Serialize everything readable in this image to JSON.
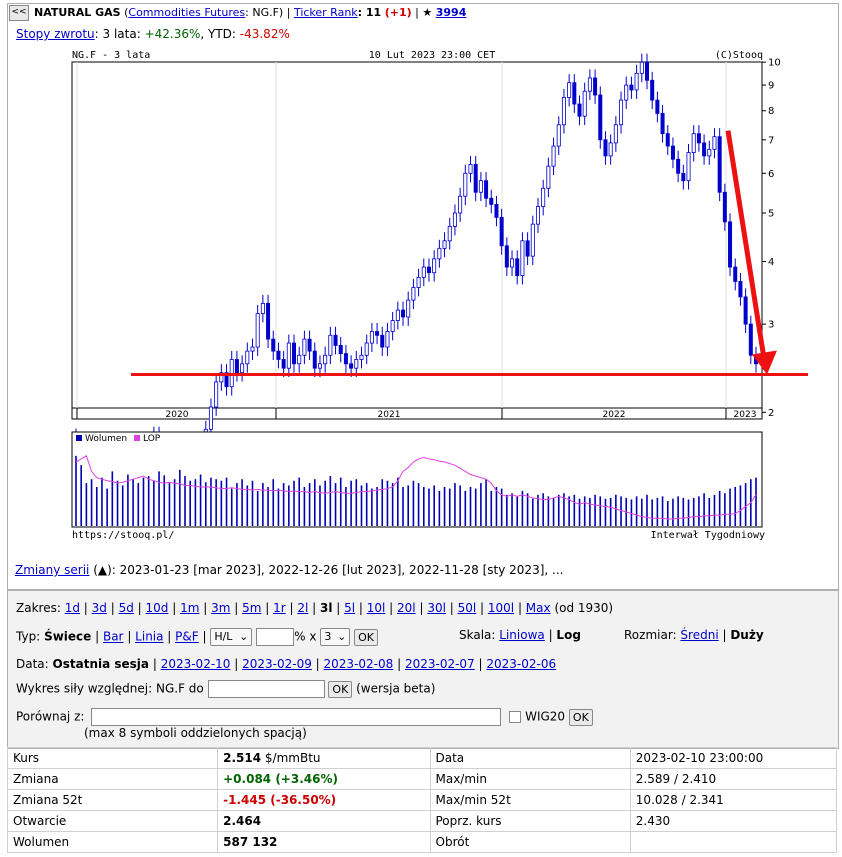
{
  "header": {
    "back_label": "<<",
    "name": "NATURAL GAS",
    "paren_open": "(",
    "category_link": "Commodities Futures",
    "symbol_sep": ": NG.F)",
    "sep1": "|",
    "ticker_rank_link": "Ticker Rank",
    "rank_value": ": 11",
    "rank_change": "(+1)",
    "sep2": "|",
    "star": "★",
    "stars_count": "3994"
  },
  "returns": {
    "link": "Stopy zwrotu",
    "period_label": ": 3 lata: ",
    "period_value": "+42.36%",
    "ytd_label": ", YTD: ",
    "ytd_value": "-43.82%"
  },
  "chart_data": {
    "type": "candlestick",
    "symbol_label": "NG.F - 3 lata",
    "date_label": "10 Lut 2023 23:00 CET",
    "copyright": "(C)Stooq",
    "source_url": "https://stooq.pl/",
    "interval_label": "Interwał Tygodniowy",
    "scale": "log",
    "y_ticks": [
      2,
      3,
      4,
      5,
      6,
      7,
      8,
      9,
      10
    ],
    "x_tick_labels": [
      "2020",
      "2021",
      "2022",
      "2023"
    ],
    "weekly_close": [
      1.75,
      1.72,
      1.65,
      1.68,
      1.6,
      1.7,
      1.62,
      1.66,
      1.58,
      1.6,
      1.65,
      1.58,
      1.7,
      1.65,
      1.75,
      1.8,
      1.72,
      1.65,
      1.6,
      1.55,
      1.7,
      1.65,
      1.62,
      1.68,
      1.75,
      1.85,
      2.05,
      2.3,
      2.4,
      2.25,
      2.55,
      2.4,
      2.5,
      2.65,
      2.7,
      3.15,
      3.3,
      2.8,
      2.65,
      2.55,
      2.45,
      2.75,
      2.5,
      2.6,
      2.8,
      2.65,
      2.45,
      2.5,
      2.6,
      2.85,
      2.72,
      2.62,
      2.5,
      2.45,
      2.55,
      2.6,
      2.75,
      2.9,
      2.85,
      2.7,
      2.9,
      3.05,
      3.2,
      3.1,
      3.35,
      3.55,
      3.72,
      3.9,
      3.8,
      4.05,
      4.25,
      4.4,
      4.7,
      5.0,
      5.4,
      6.0,
      6.25,
      5.5,
      5.8,
      5.35,
      5.2,
      4.9,
      4.3,
      3.9,
      4.05,
      3.75,
      4.4,
      4.1,
      4.75,
      5.15,
      5.6,
      6.2,
      6.8,
      7.5,
      8.5,
      9.1,
      8.25,
      7.8,
      8.75,
      9.3,
      8.6,
      7.0,
      6.5,
      6.9,
      7.5,
      8.4,
      9.0,
      8.8,
      9.5,
      10.0,
      9.2,
      8.4,
      7.9,
      7.2,
      6.8,
      6.4,
      6.0,
      5.8,
      6.6,
      7.2,
      6.9,
      6.5,
      6.7,
      7.1,
      5.5,
      4.8,
      3.9,
      3.65,
      3.4,
      3.0,
      2.6,
      2.5
    ],
    "volume_rel": [
      0.9,
      0.78,
      0.55,
      0.6,
      0.5,
      0.62,
      0.48,
      0.7,
      0.58,
      0.52,
      0.66,
      0.6,
      0.55,
      0.62,
      0.64,
      0.58,
      0.7,
      0.65,
      0.55,
      0.6,
      0.72,
      0.64,
      0.58,
      0.6,
      0.66,
      0.56,
      0.62,
      0.6,
      0.58,
      0.62,
      0.48,
      0.55,
      0.6,
      0.52,
      0.58,
      0.45,
      0.55,
      0.5,
      0.6,
      0.48,
      0.55,
      0.52,
      0.58,
      0.62,
      0.5,
      0.55,
      0.6,
      0.52,
      0.58,
      0.64,
      0.55,
      0.62,
      0.5,
      0.58,
      0.6,
      0.52,
      0.55,
      0.48,
      0.5,
      0.6,
      0.58,
      0.55,
      0.62,
      0.5,
      0.52,
      0.58,
      0.55,
      0.5,
      0.48,
      0.52,
      0.45,
      0.5,
      0.48,
      0.55,
      0.52,
      0.45,
      0.5,
      0.48,
      0.55,
      0.6,
      0.45,
      0.5,
      0.48,
      0.4,
      0.42,
      0.38,
      0.45,
      0.42,
      0.35,
      0.4,
      0.42,
      0.38,
      0.36,
      0.4,
      0.42,
      0.38,
      0.4,
      0.35,
      0.38,
      0.36,
      0.4,
      0.38,
      0.35,
      0.36,
      0.4,
      0.38,
      0.36,
      0.34,
      0.38,
      0.35,
      0.4,
      0.34,
      0.36,
      0.38,
      0.32,
      0.35,
      0.38,
      0.36,
      0.34,
      0.36,
      0.38,
      0.42,
      0.36,
      0.4,
      0.45,
      0.42,
      0.48,
      0.5,
      0.52,
      0.55,
      0.6,
      0.62
    ],
    "lop_rel": [
      0.82,
      0.86,
      0.9,
      0.7,
      0.62,
      0.6,
      0.58,
      0.57,
      0.55,
      0.56,
      0.58,
      0.6,
      0.62,
      0.64,
      0.6,
      0.58,
      0.56,
      0.55,
      0.56,
      0.55,
      0.54,
      0.52,
      0.52,
      0.51,
      0.5,
      0.5,
      0.5,
      0.49,
      0.48,
      0.48,
      0.49,
      0.48,
      0.47,
      0.47,
      0.46,
      0.47,
      0.46,
      0.46,
      0.45,
      0.46,
      0.45,
      0.44,
      0.45,
      0.44,
      0.44,
      0.43,
      0.44,
      0.43,
      0.42,
      0.43,
      0.44,
      0.43,
      0.42,
      0.42,
      0.43,
      0.44,
      0.44,
      0.45,
      0.46,
      0.47,
      0.48,
      0.5,
      0.58,
      0.7,
      0.75,
      0.82,
      0.86,
      0.88,
      0.86,
      0.85,
      0.83,
      0.82,
      0.8,
      0.78,
      0.74,
      0.7,
      0.66,
      0.64,
      0.62,
      0.6,
      0.55,
      0.45,
      0.4,
      0.38,
      0.4,
      0.38,
      0.4,
      0.38,
      0.36,
      0.35,
      0.34,
      0.34,
      0.36,
      0.38,
      0.36,
      0.34,
      0.3,
      0.28,
      0.3,
      0.28,
      0.27,
      0.26,
      0.25,
      0.24,
      0.22,
      0.2,
      0.18,
      0.16,
      0.14,
      0.12,
      0.11,
      0.1,
      0.1,
      0.1,
      0.09,
      0.09,
      0.1,
      0.1,
      0.11,
      0.12,
      0.12,
      0.13,
      0.13,
      0.14,
      0.14,
      0.15,
      0.15,
      0.16,
      0.2,
      0.25,
      0.3,
      0.4
    ],
    "legend": [
      {
        "name": "Wolumen",
        "color": "#0000b0"
      },
      {
        "name": "LOP",
        "color": "#e040e0"
      }
    ],
    "annotations": [
      {
        "kind": "horizontal-line",
        "y": 2.38,
        "color": "#ee1111"
      },
      {
        "kind": "arrow",
        "from_value": 7.3,
        "to_value": 2.38,
        "color": "#ee1111"
      }
    ],
    "up_color": "#ffffff",
    "down_color": "#0000cc"
  },
  "series_changes": {
    "link": "Zmiany serii",
    "marker": "(▲)",
    "text": ": 2023-01-23 [mar 2023], 2022-12-26 [lut 2023], 2022-11-28 [sty 2023], ..."
  },
  "controls": {
    "range_label": "Zakres:",
    "ranges": [
      "1d",
      "3d",
      "5d",
      "10d",
      "1m",
      "3m",
      "5m",
      "1r",
      "2l",
      "3l",
      "5l",
      "10l",
      "20l",
      "30l",
      "50l",
      "100l",
      "Max"
    ],
    "range_active": "3l",
    "range_suffix": "(od 1930)",
    "type_label": "Typ:",
    "type_active": "Świece",
    "types": [
      "Bar",
      "Linia",
      "P&F"
    ],
    "hl_select": "H/L",
    "pct_label": "% x",
    "x_select": "3",
    "ok": "OK",
    "scale_label": "Skala:",
    "scale_link": "Liniowa",
    "scale_active": "Log",
    "size_label": "Rozmiar:",
    "size_link": "Średni",
    "size_active": "Duży",
    "data_label": "Data:",
    "data_active": "Ostatnia sesja",
    "dates": [
      "2023-02-10",
      "2023-02-09",
      "2023-02-08",
      "2023-02-07",
      "2023-02-06"
    ],
    "relative_label": "Wykres siły względnej: NG.F do",
    "relative_note": "(wersja beta)",
    "compare_label": "Porównaj z:",
    "compare_checkbox": "WIG20",
    "compare_note": "(max 8 symboli oddzielonych spacją)"
  },
  "stats": [
    {
      "label": "Kurs",
      "value": "2.514",
      "unit": " $/mmBtu",
      "label2": "Data",
      "value2": "2023-02-10 23:00:00"
    },
    {
      "label": "Zmiana",
      "value": "+0.084 (+3.46%)",
      "unit": "",
      "label2": "Max/min",
      "value2": "2.589 / 2.410"
    },
    {
      "label": "Zmiana 52t",
      "value": "-1.445 (-36.50%)",
      "unit": "",
      "label2": "Max/min 52t",
      "value2": "10.028 / 2.341"
    },
    {
      "label": "Otwarcie",
      "value": "2.464",
      "unit": "",
      "label2": "Poprz. kurs",
      "value2": "2.430"
    },
    {
      "label": "Wolumen",
      "value": "587 132",
      "unit": "",
      "label2": "Obrót",
      "value2": ""
    }
  ]
}
